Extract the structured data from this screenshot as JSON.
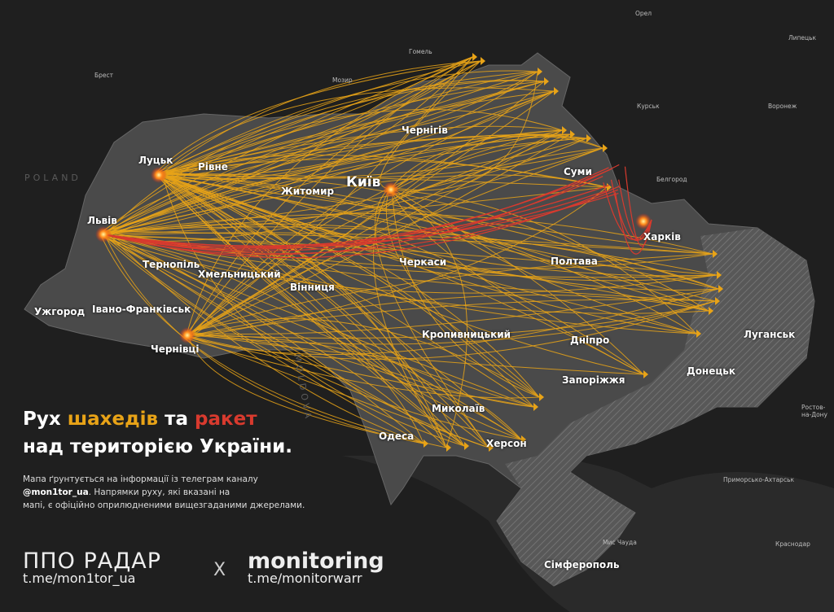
{
  "title": {
    "line1_prefix": "Рух",
    "line1_drones": "шахедів",
    "line1_mid": "та",
    "line1_missiles": "ракет",
    "line2": "над територією України."
  },
  "description": {
    "line1": "Мапа ґрунтується на інформації із телеграм каналу",
    "handle": "@mon1tor_ua",
    "line2_rest": ". Напрямки руху, які вказані на",
    "line3": "мапі, є офіційно оприлюдненими вищезгаданими джерелами."
  },
  "brands": [
    {
      "name": "ППО РАДАР",
      "url": "t.me/mon1tor_ua"
    },
    {
      "separator": "X"
    },
    {
      "name": "monitoring",
      "url": "t.me/monitorwarr"
    }
  ],
  "cities_major": [
    "Луцьк",
    "Рівне",
    "Житомир",
    "Київ",
    "Чернігів",
    "Суми",
    "Харків",
    "Полтава",
    "Черкаси",
    "Вінниця",
    "Хмельницький",
    "Тернопіль",
    "Львів",
    "Івано-Франківськ",
    "Ужгород",
    "Чернівці",
    "Кропивницький",
    "Дніпро",
    "Запоріжжя",
    "Миколаїв",
    "Херсон",
    "Одеса",
    "Донецьк",
    "Луганськ",
    "Сімферополь"
  ],
  "cities_foreign": [
    "Орел",
    "Липецьк",
    "Курськ",
    "Воронеж",
    "Белгород",
    "Гомель",
    "Мозир",
    "Брест",
    "Ростов-на-Дону",
    "Приморсько-Ахтарськ",
    "Краснодар",
    "Мис Чауда"
  ],
  "countries": [
    "POLAND",
    "MOLDOVA"
  ],
  "legend_colors": {
    "drones": "#e8a317",
    "missiles": "#d83a2e",
    "occupied": "hatched-grey"
  },
  "explosion_sites": [
    "Львів",
    "Луцьк",
    "Київ",
    "Чернівці",
    "Харків"
  ]
}
